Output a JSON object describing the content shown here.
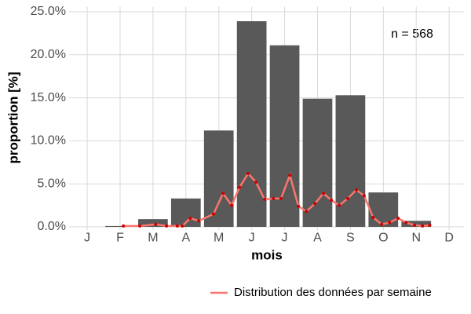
{
  "chart_data": {
    "type": "bar",
    "x_label": "mois",
    "y_label": "proportion [%]",
    "annotation": "n = 568",
    "categories": [
      "J",
      "F",
      "M",
      "A",
      "M",
      "J",
      "J",
      "A",
      "S",
      "O",
      "N",
      "D"
    ],
    "xlim": [
      0.45,
      12.45
    ],
    "ylim": [
      -0.4,
      25.6
    ],
    "yticks": [
      {
        "value": 0,
        "label": "0.0%"
      },
      {
        "value": 5,
        "label": "5.0%"
      },
      {
        "value": 10,
        "label": "10.0%"
      },
      {
        "value": 15,
        "label": "15.0%"
      },
      {
        "value": 20,
        "label": "20.0%"
      },
      {
        "value": 25,
        "label": "25.0%"
      }
    ],
    "grid": true,
    "legend": "bottom",
    "series": [
      {
        "type": "bar",
        "color": "#595959",
        "values": [
          0,
          0.1,
          0.9,
          3.3,
          11.2,
          23.9,
          21.1,
          14.9,
          15.3,
          4.0,
          0.7,
          0
        ]
      },
      {
        "type": "line",
        "name": "Distribution des données par semaine",
        "color": "#f8766d",
        "point_color": "#cc0000",
        "x": [
          2.1,
          2.6,
          3.08,
          3.41,
          3.74,
          3.89,
          4.13,
          4.39,
          4.84,
          5.13,
          5.39,
          5.63,
          5.89,
          6.13,
          6.39,
          6.66,
          6.89,
          7.16,
          7.42,
          7.66,
          7.92,
          8.18,
          8.42,
          8.66,
          8.92,
          9.18,
          9.42,
          9.69,
          9.95,
          10.19,
          10.45,
          10.69,
          10.95,
          11.19,
          11.41
        ],
        "values": [
          0.1,
          0.1,
          0.3,
          0.1,
          0.1,
          0.1,
          1.0,
          0.7,
          1.5,
          3.9,
          2.5,
          4.6,
          6.2,
          5.2,
          3.2,
          3.3,
          3.3,
          6.0,
          2.4,
          1.8,
          2.7,
          3.9,
          3.1,
          2.5,
          3.3,
          4.3,
          3.6,
          1.1,
          0.3,
          0.5,
          1.0,
          0.5,
          0.2,
          0.1,
          0.2
        ]
      }
    ]
  }
}
